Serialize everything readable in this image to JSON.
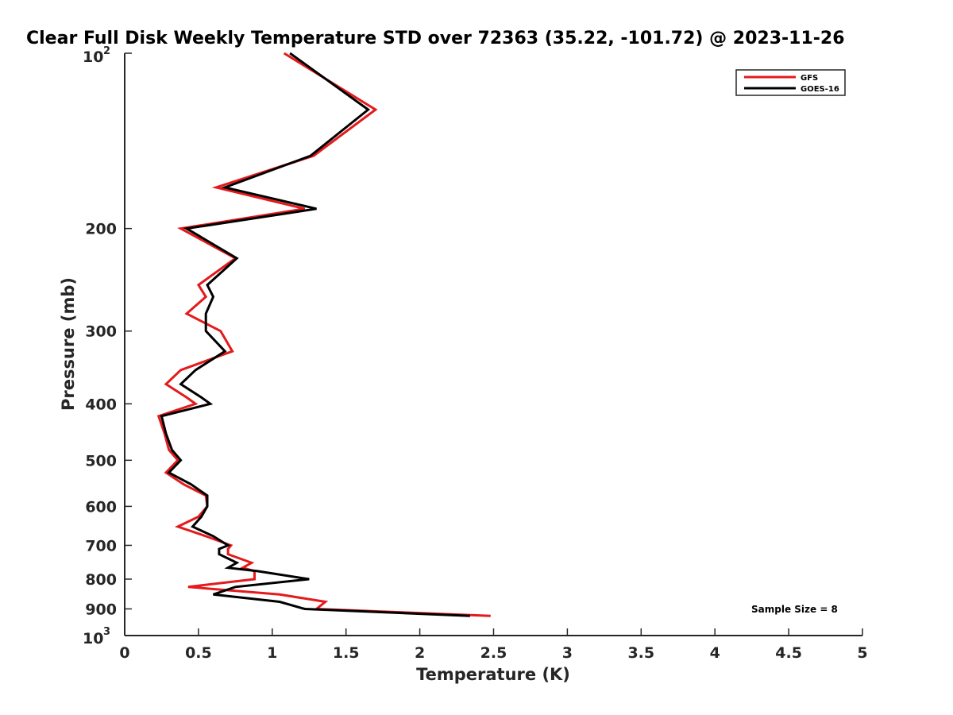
{
  "chart_data": {
    "type": "line",
    "title": "Clear Full Disk Weekly Temperature STD over 72363 (35.22, -101.72) @ 2023-11-26",
    "xlabel": "Temperature (K)",
    "ylabel": "Pressure (mb)",
    "xlim": [
      0,
      5
    ],
    "ylim": [
      100,
      1000
    ],
    "y_scale": "log",
    "y_reversed": true,
    "x_ticks": [
      0,
      0.5,
      1,
      1.5,
      2,
      2.5,
      3,
      3.5,
      4,
      4.5,
      5
    ],
    "x_tick_labels": [
      "0",
      "0.5",
      "1",
      "1.5",
      "2",
      "2.5",
      "3",
      "3.5",
      "4",
      "4.5",
      "5"
    ],
    "y_ticks": [
      200,
      300,
      400,
      500,
      600,
      700,
      800,
      900
    ],
    "y_tick_labels": [
      "200",
      "300",
      "400",
      "500",
      "600",
      "700",
      "800",
      "900"
    ],
    "y_tick_top": {
      "value": 100,
      "base": "10",
      "exp": "2"
    },
    "y_tick_bottom": {
      "value": 1000,
      "base": "10",
      "exp": "3"
    },
    "grid": false,
    "legend_position": "top-right",
    "annotation": "Sample Size = 8",
    "series": [
      {
        "name": "GFS",
        "color": "#e41a1c",
        "points": [
          [
            1.08,
            100
          ],
          [
            1.7,
            125
          ],
          [
            1.28,
            150
          ],
          [
            0.62,
            170
          ],
          [
            1.22,
            185
          ],
          [
            0.38,
            200
          ],
          [
            0.75,
            225
          ],
          [
            0.5,
            250
          ],
          [
            0.55,
            262
          ],
          [
            0.42,
            280
          ],
          [
            0.65,
            300
          ],
          [
            0.73,
            325
          ],
          [
            0.38,
            350
          ],
          [
            0.28,
            370
          ],
          [
            0.42,
            390
          ],
          [
            0.48,
            400
          ],
          [
            0.23,
            420
          ],
          [
            0.27,
            450
          ],
          [
            0.3,
            480
          ],
          [
            0.36,
            500
          ],
          [
            0.28,
            525
          ],
          [
            0.4,
            550
          ],
          [
            0.55,
            575
          ],
          [
            0.56,
            600
          ],
          [
            0.5,
            625
          ],
          [
            0.36,
            650
          ],
          [
            0.55,
            675
          ],
          [
            0.72,
            700
          ],
          [
            0.7,
            710
          ],
          [
            0.7,
            725
          ],
          [
            0.86,
            750
          ],
          [
            0.8,
            765
          ],
          [
            0.88,
            775
          ],
          [
            0.88,
            800
          ],
          [
            0.43,
            825
          ],
          [
            1.05,
            850
          ],
          [
            1.36,
            875
          ],
          [
            1.3,
            900
          ],
          [
            2.48,
            925
          ]
        ]
      },
      {
        "name": "GOES-16",
        "color": "#000000",
        "points": [
          [
            1.12,
            100
          ],
          [
            1.65,
            125
          ],
          [
            1.26,
            150
          ],
          [
            0.68,
            170
          ],
          [
            1.3,
            185
          ],
          [
            0.42,
            200
          ],
          [
            0.76,
            225
          ],
          [
            0.56,
            250
          ],
          [
            0.6,
            262
          ],
          [
            0.55,
            280
          ],
          [
            0.55,
            300
          ],
          [
            0.68,
            325
          ],
          [
            0.48,
            350
          ],
          [
            0.38,
            370
          ],
          [
            0.52,
            390
          ],
          [
            0.58,
            400
          ],
          [
            0.25,
            420
          ],
          [
            0.28,
            450
          ],
          [
            0.32,
            480
          ],
          [
            0.38,
            500
          ],
          [
            0.3,
            525
          ],
          [
            0.45,
            550
          ],
          [
            0.56,
            575
          ],
          [
            0.56,
            600
          ],
          [
            0.52,
            625
          ],
          [
            0.46,
            650
          ],
          [
            0.6,
            675
          ],
          [
            0.7,
            700
          ],
          [
            0.64,
            710
          ],
          [
            0.64,
            725
          ],
          [
            0.76,
            750
          ],
          [
            0.7,
            765
          ],
          [
            0.9,
            775
          ],
          [
            1.25,
            800
          ],
          [
            0.75,
            825
          ],
          [
            0.6,
            850
          ],
          [
            1.05,
            875
          ],
          [
            1.22,
            900
          ],
          [
            2.34,
            925
          ]
        ]
      }
    ]
  }
}
